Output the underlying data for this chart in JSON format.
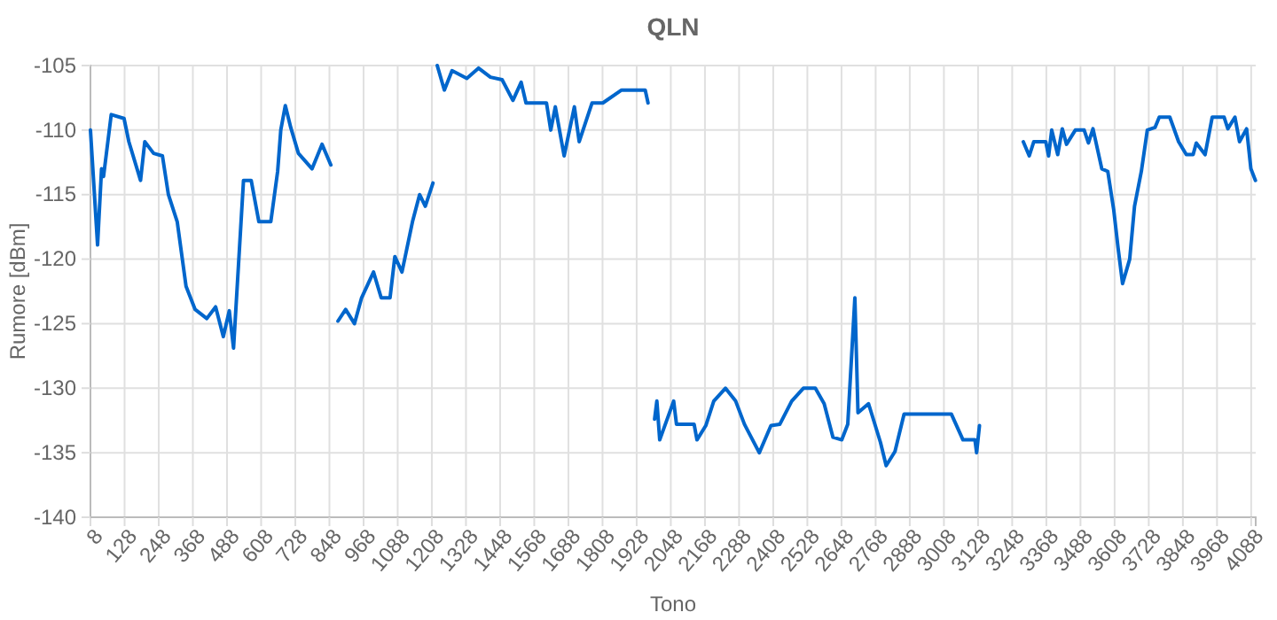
{
  "chart_data": {
    "type": "line",
    "title": "QLN",
    "xlabel": "Tono",
    "ylabel": "Rumore [dBm]",
    "xlim": [
      8,
      4104
    ],
    "xticks": [
      8,
      128,
      248,
      368,
      488,
      608,
      728,
      848,
      968,
      1088,
      1208,
      1328,
      1448,
      1568,
      1688,
      1808,
      1928,
      2048,
      2168,
      2288,
      2408,
      2528,
      2648,
      2768,
      2888,
      3008,
      3128,
      3248,
      3368,
      3488,
      3608,
      3728,
      3848,
      3968,
      4088
    ],
    "ylim": [
      -140,
      -105
    ],
    "yticks": [
      -140,
      -135,
      -130,
      -125,
      -120,
      -115,
      -110,
      -105
    ],
    "grid": true,
    "marker": "none",
    "line_style": "solid",
    "series": [
      {
        "color": "#0066cc",
        "x": [
          8,
          33,
          47,
          54,
          81,
          126,
          143,
          184,
          199,
          230,
          261,
          282,
          313,
          344,
          376,
          417,
          448,
          475,
          496,
          511,
          546,
          573,
          600,
          642,
          666,
          677,
          693,
          712,
          739,
          787,
          822,
          853,
          865,
          878,
          905,
          936,
          961,
          1003,
          1030,
          1061,
          1078,
          1103,
          1140,
          1165,
          1185,
          1212,
          1220,
          1227,
          1252,
          1279,
          1331,
          1372,
          1414,
          1455,
          1493,
          1522,
          1539,
          1611,
          1626,
          1642,
          1673,
          1709,
          1726,
          1771,
          1809,
          1875,
          1922,
          1958,
          1968,
          1980,
          1991,
          1999,
          2009,
          2058,
          2068,
          2130,
          2140,
          2171,
          2199,
          2240,
          2276,
          2307,
          2359,
          2400,
          2431,
          2473,
          2514,
          2556,
          2587,
          2618,
          2649,
          2670,
          2695,
          2706,
          2743,
          2785,
          2805,
          2836,
          2868,
          2909,
          2992,
          3034,
          3075,
          3117,
          3123,
          3133,
          3200,
          3287,
          3308,
          3324,
          3366,
          3376,
          3387,
          3408,
          3424,
          3439,
          3470,
          3501,
          3516,
          3532,
          3563,
          3584,
          3605,
          3620,
          3636,
          3661,
          3678,
          3702,
          3723,
          3750,
          3765,
          3802,
          3833,
          3860,
          3884,
          3895,
          3926,
          3951,
          3993,
          4006,
          4031,
          4047,
          4072,
          4087,
          4103
        ],
        "values": [
          -110,
          -118.9,
          -113,
          -113.6,
          -108.8,
          -109.1,
          -110.9,
          -113.9,
          -110.9,
          -111.8,
          -112,
          -115,
          -117.1,
          -122.1,
          -123.9,
          -124.6,
          -123.7,
          -126,
          -124,
          -126.9,
          -113.9,
          -113.9,
          -117.1,
          -117.1,
          -113.2,
          -110,
          -108.1,
          -109.8,
          -111.8,
          -113,
          -111.1,
          -112.7,
          null,
          -124.8,
          -123.9,
          -125,
          -123,
          -121,
          -123,
          -123,
          -119.8,
          -121,
          -117.1,
          -115,
          -115.9,
          -114.1,
          null,
          -105,
          -106.9,
          -105.4,
          -106,
          -105.2,
          -105.9,
          -106.1,
          -107.7,
          -106.3,
          -107.9,
          -107.9,
          -110,
          -108.2,
          -112,
          -108.2,
          -110.9,
          -107.9,
          -107.9,
          -106.9,
          -106.9,
          -106.9,
          -107.9,
          null,
          -132.4,
          -131,
          -134,
          -131,
          -132.8,
          -132.8,
          -134,
          -132.9,
          -131,
          -130,
          -131,
          -132.8,
          -135,
          -132.9,
          -132.8,
          -131,
          -130,
          -130,
          -131.2,
          -133.8,
          -134,
          -132.8,
          -123,
          -131.9,
          -131.2,
          -134.2,
          -136,
          -134.9,
          -132,
          -132,
          -132,
          -132,
          -134,
          -134,
          -135,
          -132.9,
          null,
          -110.9,
          -112,
          -110.9,
          -110.9,
          -112,
          -110,
          -111.9,
          -109.9,
          -111.1,
          -110,
          -110,
          -111,
          -109.9,
          -113,
          -113.2,
          -116.2,
          -119.1,
          -121.9,
          -120,
          -115.9,
          -113.2,
          -110,
          -109.8,
          -109,
          -109,
          -110.9,
          -111.9,
          -111.9,
          -111,
          -111.9,
          -109,
          -109,
          -109.9,
          -109,
          -110.9,
          -109.9,
          -113,
          -113.9
        ]
      }
    ]
  }
}
